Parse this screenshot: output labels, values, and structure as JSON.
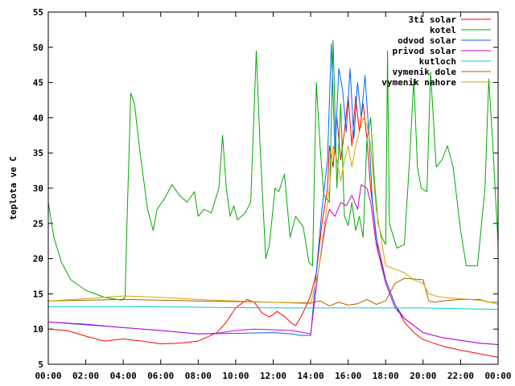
{
  "chart_data": {
    "type": "line",
    "title": "",
    "xlabel": "",
    "ylabel": "teplota ve C",
    "xlim": [
      0,
      24
    ],
    "ylim": [
      5,
      55
    ],
    "grid": false,
    "legend_position": "top-right",
    "x_ticks": [
      "00:00",
      "02:00",
      "04:00",
      "06:00",
      "08:00",
      "10:00",
      "12:00",
      "14:00",
      "16:00",
      "18:00",
      "20:00",
      "22:00",
      "00:00"
    ],
    "x_tick_values": [
      0,
      2,
      4,
      6,
      8,
      10,
      12,
      14,
      16,
      18,
      20,
      22,
      24
    ],
    "y_ticks": [
      "5",
      "10",
      "15",
      "20",
      "25",
      "30",
      "35",
      "40",
      "45",
      "50",
      "55"
    ],
    "y_tick_values": [
      5,
      10,
      15,
      20,
      25,
      30,
      35,
      40,
      45,
      50,
      55
    ],
    "series": [
      {
        "name": "3ti solar",
        "color": "#ff0000",
        "points": [
          [
            0,
            10
          ],
          [
            1,
            9.8
          ],
          [
            2,
            9
          ],
          [
            3,
            8.3
          ],
          [
            4,
            8.6
          ],
          [
            5,
            8.3
          ],
          [
            6,
            7.9
          ],
          [
            7,
            8
          ],
          [
            8,
            8.3
          ],
          [
            9,
            9.5
          ],
          [
            9.5,
            11
          ],
          [
            10,
            13
          ],
          [
            10.6,
            14.2
          ],
          [
            11,
            13.8
          ],
          [
            11.4,
            12.3
          ],
          [
            11.8,
            11.7
          ],
          [
            12.2,
            12.5
          ],
          [
            12.6,
            11.8
          ],
          [
            13,
            10.8
          ],
          [
            13.2,
            10.5
          ],
          [
            13.5,
            11.8
          ],
          [
            13.8,
            13.5
          ],
          [
            14,
            14.8
          ],
          [
            14.3,
            18
          ],
          [
            14.6,
            25
          ],
          [
            14.9,
            30
          ],
          [
            15,
            36
          ],
          [
            15.2,
            33
          ],
          [
            15.4,
            40
          ],
          [
            15.6,
            34
          ],
          [
            15.8,
            38
          ],
          [
            16,
            43
          ],
          [
            16.2,
            36
          ],
          [
            16.4,
            43
          ],
          [
            16.6,
            38
          ],
          [
            16.8,
            42
          ],
          [
            17,
            37
          ],
          [
            17.2,
            30
          ],
          [
            17.5,
            23
          ],
          [
            18,
            17
          ],
          [
            18.5,
            13.5
          ],
          [
            19,
            11
          ],
          [
            19.5,
            9.5
          ],
          [
            20,
            8.5
          ],
          [
            21,
            7.6
          ],
          [
            22,
            7
          ],
          [
            23,
            6.5
          ],
          [
            24,
            6
          ]
        ]
      },
      {
        "name": "kotel",
        "color": "#00aa00",
        "points": [
          [
            0,
            28
          ],
          [
            0.3,
            23
          ],
          [
            0.7,
            19.5
          ],
          [
            1.2,
            17
          ],
          [
            2,
            15.5
          ],
          [
            3,
            14.5
          ],
          [
            3.9,
            14.1
          ],
          [
            4.1,
            14.5
          ],
          [
            4.2,
            25
          ],
          [
            4.4,
            43.5
          ],
          [
            4.6,
            42
          ],
          [
            4.9,
            35
          ],
          [
            5.3,
            27
          ],
          [
            5.6,
            24
          ],
          [
            5.8,
            27
          ],
          [
            6.2,
            28.5
          ],
          [
            6.6,
            30.5
          ],
          [
            7,
            29
          ],
          [
            7.4,
            28
          ],
          [
            7.8,
            29.5
          ],
          [
            8,
            26
          ],
          [
            8.3,
            27
          ],
          [
            8.7,
            26.5
          ],
          [
            9.1,
            30
          ],
          [
            9.3,
            37.5
          ],
          [
            9.5,
            30
          ],
          [
            9.7,
            26
          ],
          [
            9.9,
            27.5
          ],
          [
            10.1,
            25.5
          ],
          [
            10.5,
            26.5
          ],
          [
            10.8,
            28
          ],
          [
            11.1,
            49.5
          ],
          [
            11.3,
            36
          ],
          [
            11.6,
            20
          ],
          [
            11.8,
            22
          ],
          [
            12.1,
            30
          ],
          [
            12.3,
            29.5
          ],
          [
            12.6,
            32
          ],
          [
            12.9,
            23
          ],
          [
            13.2,
            26
          ],
          [
            13.6,
            24.5
          ],
          [
            13.9,
            19.5
          ],
          [
            14.1,
            19
          ],
          [
            14.3,
            45
          ],
          [
            14.5,
            36
          ],
          [
            14.7,
            29
          ],
          [
            15.0,
            28
          ],
          [
            15.2,
            51
          ],
          [
            15.4,
            30
          ],
          [
            15.6,
            42
          ],
          [
            15.8,
            26
          ],
          [
            16.0,
            24.7
          ],
          [
            16.2,
            28
          ],
          [
            16.4,
            24
          ],
          [
            16.6,
            26
          ],
          [
            16.8,
            23
          ],
          [
            17.0,
            37
          ],
          [
            17.2,
            40
          ],
          [
            17.4,
            31
          ],
          [
            17.6,
            25
          ],
          [
            17.8,
            23
          ],
          [
            18.0,
            22
          ],
          [
            18.1,
            49.5
          ],
          [
            18.2,
            25
          ],
          [
            18.6,
            21.5
          ],
          [
            19.0,
            22
          ],
          [
            19.3,
            35
          ],
          [
            19.5,
            45.5
          ],
          [
            19.7,
            33
          ],
          [
            19.9,
            30
          ],
          [
            20.2,
            29.5
          ],
          [
            20.4,
            46.5
          ],
          [
            20.7,
            33
          ],
          [
            21.0,
            34
          ],
          [
            21.3,
            36
          ],
          [
            21.6,
            33
          ],
          [
            22.0,
            24
          ],
          [
            22.3,
            19
          ],
          [
            22.9,
            19
          ],
          [
            23.3,
            30
          ],
          [
            23.5,
            45.5
          ],
          [
            23.7,
            37
          ],
          [
            24,
            22
          ]
        ]
      },
      {
        "name": "odvod solar",
        "color": "#0066ff",
        "points": [
          [
            0,
            11
          ],
          [
            2,
            10.6
          ],
          [
            4,
            10.2
          ],
          [
            6,
            9.8
          ],
          [
            8,
            9.3
          ],
          [
            10,
            9.4
          ],
          [
            12,
            9.5
          ],
          [
            13,
            9.3
          ],
          [
            13.5,
            9.1
          ],
          [
            14,
            9.1
          ],
          [
            14.3,
            18
          ],
          [
            14.6,
            27
          ],
          [
            14.9,
            34
          ],
          [
            15.1,
            50.5
          ],
          [
            15.3,
            35
          ],
          [
            15.5,
            47
          ],
          [
            15.7,
            44
          ],
          [
            15.9,
            38
          ],
          [
            16.1,
            47
          ],
          [
            16.3,
            37
          ],
          [
            16.5,
            45
          ],
          [
            16.7,
            40
          ],
          [
            16.9,
            46
          ],
          [
            17.1,
            38
          ],
          [
            17.3,
            28
          ],
          [
            17.6,
            21
          ],
          [
            18,
            17
          ],
          [
            18.5,
            13.5
          ],
          [
            19,
            11.5
          ],
          [
            19.5,
            10.5
          ],
          [
            20,
            9.5
          ],
          [
            21,
            8.8
          ],
          [
            22,
            8.4
          ],
          [
            23,
            8
          ],
          [
            24,
            7.8
          ]
        ]
      },
      {
        "name": "privod solar",
        "color": "#cc00cc",
        "points": [
          [
            0,
            11
          ],
          [
            2,
            10.7
          ],
          [
            4,
            10.2
          ],
          [
            6,
            9.8
          ],
          [
            8,
            9.3
          ],
          [
            9,
            9.4
          ],
          [
            10,
            9.8
          ],
          [
            11,
            10
          ],
          [
            12,
            9.9
          ],
          [
            13,
            9.8
          ],
          [
            14,
            9.3
          ],
          [
            14.4,
            18
          ],
          [
            14.8,
            25
          ],
          [
            15,
            27
          ],
          [
            15.3,
            26
          ],
          [
            15.6,
            28
          ],
          [
            15.9,
            27.5
          ],
          [
            16.2,
            29
          ],
          [
            16.5,
            27
          ],
          [
            16.7,
            30.5
          ],
          [
            17,
            30
          ],
          [
            17.2,
            28
          ],
          [
            17.5,
            22
          ],
          [
            18,
            16.5
          ],
          [
            18.5,
            13
          ],
          [
            19,
            11.5
          ],
          [
            19.5,
            10.5
          ],
          [
            20,
            9.5
          ],
          [
            21,
            8.8
          ],
          [
            22,
            8.4
          ],
          [
            23,
            8
          ],
          [
            24,
            7.8
          ]
        ]
      },
      {
        "name": "kutloch",
        "color": "#00cccc",
        "points": [
          [
            0,
            13.2
          ],
          [
            4,
            13.2
          ],
          [
            8,
            13.1
          ],
          [
            12,
            13
          ],
          [
            16,
            13
          ],
          [
            20,
            13
          ],
          [
            24,
            12.8
          ]
        ]
      },
      {
        "name": "vymenik dole",
        "color": "#b35900",
        "points": [
          [
            0,
            14
          ],
          [
            4,
            14.2
          ],
          [
            8,
            14
          ],
          [
            12,
            13.8
          ],
          [
            14,
            13.7
          ],
          [
            14.5,
            14
          ],
          [
            15,
            13.3
          ],
          [
            15.5,
            13.8
          ],
          [
            16,
            13.4
          ],
          [
            16.5,
            13.6
          ],
          [
            17,
            14.2
          ],
          [
            17.5,
            13.5
          ],
          [
            18,
            14
          ],
          [
            18.5,
            16.5
          ],
          [
            19,
            17.2
          ],
          [
            19.5,
            17.1
          ],
          [
            20,
            17
          ],
          [
            20.3,
            14
          ],
          [
            20.6,
            13.8
          ],
          [
            21,
            14
          ],
          [
            22,
            14.2
          ],
          [
            23,
            14.2
          ],
          [
            23.5,
            13.8
          ],
          [
            24,
            13.8
          ]
        ]
      },
      {
        "name": "vymenik nahore",
        "color": "#ccaa00",
        "points": [
          [
            0,
            14
          ],
          [
            2,
            14.3
          ],
          [
            4,
            14.7
          ],
          [
            6,
            14.5
          ],
          [
            8,
            14.2
          ],
          [
            10,
            14
          ],
          [
            12,
            13.8
          ],
          [
            14,
            13.6
          ],
          [
            14.4,
            18
          ],
          [
            14.8,
            26
          ],
          [
            15.0,
            30
          ],
          [
            15.2,
            36
          ],
          [
            15.4,
            34
          ],
          [
            15.6,
            31
          ],
          [
            15.8,
            34
          ],
          [
            16.0,
            36
          ],
          [
            16.2,
            33
          ],
          [
            16.4,
            36
          ],
          [
            16.6,
            38
          ],
          [
            16.8,
            40
          ],
          [
            17.0,
            39
          ],
          [
            17.2,
            36
          ],
          [
            17.5,
            27
          ],
          [
            18,
            19
          ],
          [
            18.5,
            18.5
          ],
          [
            19,
            18
          ],
          [
            19.5,
            17
          ],
          [
            20,
            16.5
          ],
          [
            20.3,
            15
          ],
          [
            20.8,
            14.6
          ],
          [
            21.5,
            14.4
          ],
          [
            22.5,
            14.2
          ],
          [
            23.3,
            14
          ],
          [
            24,
            13.5
          ]
        ]
      }
    ]
  }
}
